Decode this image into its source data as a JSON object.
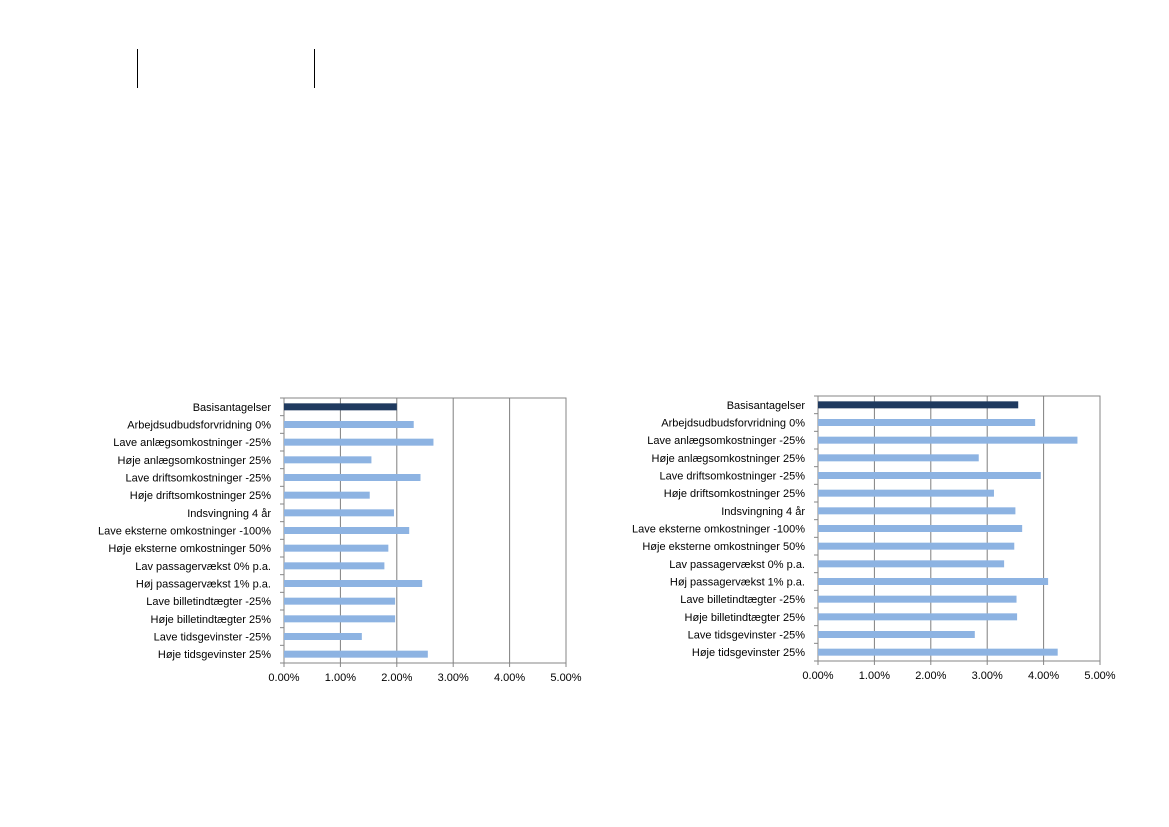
{
  "charts_colors": {
    "base_bar": "#1f3a5f",
    "bar": "#8db3e2",
    "grid": "#7f7f7f",
    "axis": "#868686"
  },
  "chart_data": [
    {
      "type": "bar",
      "orientation": "horizontal",
      "title": "",
      "xlabel": "",
      "ylabel": "",
      "xlim": [
        0,
        5
      ],
      "x_ticks": [
        "0.00%",
        "1.00%",
        "2.00%",
        "3.00%",
        "4.00%",
        "5.00%"
      ],
      "grid": true,
      "categories": [
        "Basisantagelser",
        "Arbejdsudbudsforvridning 0%",
        "Lave anlægsomkostninger -25%",
        "Høje anlægsomkostninger 25%",
        "Lave driftsomkostninger -25%",
        "Høje driftsomkostninger 25%",
        "Indsvingning 4 år",
        "Lave eksterne omkostninger -100%",
        "Høje eksterne omkostninger 50%",
        "Lav passagervækst 0% p.a.",
        "Høj passagervækst 1% p.a.",
        "Lave billetindtægter -25%",
        "Høje billetindtægter 25%",
        "Lave tidsgevinster -25%",
        "Høje tidsgevinster 25%"
      ],
      "values": [
        2.0,
        2.3,
        2.65,
        1.55,
        2.42,
        1.52,
        1.95,
        2.22,
        1.85,
        1.78,
        2.45,
        1.97,
        1.97,
        1.38,
        2.55
      ],
      "highlight_index": 0
    },
    {
      "type": "bar",
      "orientation": "horizontal",
      "title": "",
      "xlabel": "",
      "ylabel": "",
      "xlim": [
        0,
        5
      ],
      "x_ticks": [
        "0.00%",
        "1.00%",
        "2.00%",
        "3.00%",
        "4.00%",
        "5.00%"
      ],
      "grid": true,
      "categories": [
        "Basisantagelser",
        "Arbejdsudbudsforvridning 0%",
        "Lave anlægsomkostninger -25%",
        "Høje anlægsomkostninger 25%",
        "Lave driftsomkostninger -25%",
        "Høje driftsomkostninger 25%",
        "Indsvingning 4 år",
        "Lave eksterne omkostninger -100%",
        "Høje eksterne omkostninger 50%",
        "Lav passagervækst 0% p.a.",
        "Høj passagervækst 1% p.a.",
        "Lave billetindtægter -25%",
        "Høje billetindtægter 25%",
        "Lave tidsgevinster -25%",
        "Høje tidsgevinster 25%"
      ],
      "values": [
        3.55,
        3.85,
        4.6,
        2.85,
        3.95,
        3.12,
        3.5,
        3.62,
        3.48,
        3.3,
        4.08,
        3.52,
        3.53,
        2.78,
        4.25
      ],
      "highlight_index": 0
    }
  ]
}
